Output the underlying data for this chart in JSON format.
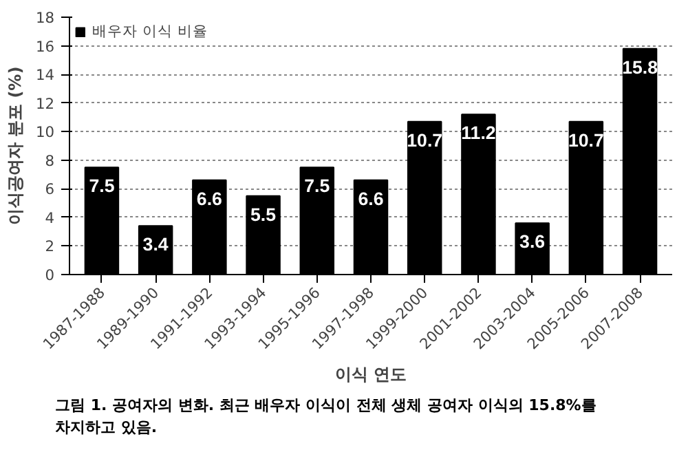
{
  "chart_data": {
    "type": "bar",
    "categories": [
      "1987-1988",
      "1989-1990",
      "1991-1992",
      "1993-1994",
      "1995-1996",
      "1997-1998",
      "1999-2000",
      "2001-2002",
      "2003-2004",
      "2005-2006",
      "2007-2008"
    ],
    "series": [
      {
        "name": "배우자 이식 비율",
        "color": "#000000",
        "values": [
          7.5,
          3.4,
          6.6,
          5.5,
          7.5,
          6.6,
          10.7,
          11.2,
          3.6,
          10.7,
          15.8
        ]
      }
    ],
    "ylim": [
      0,
      18
    ],
    "yticks": [
      0,
      2,
      4,
      6,
      8,
      10,
      12,
      14,
      16,
      18
    ],
    "ylabel": "이식공여자 분포 (%)",
    "xlabel": "이식 연도",
    "grid": "y",
    "legend": "top left",
    "data_labels": true,
    "annotations": [
      "그림 1. 공여자의 변화. 최근 배우자 이식이 전체 생체 공여자 이식의 15.8%를 차지하고 있음."
    ]
  }
}
